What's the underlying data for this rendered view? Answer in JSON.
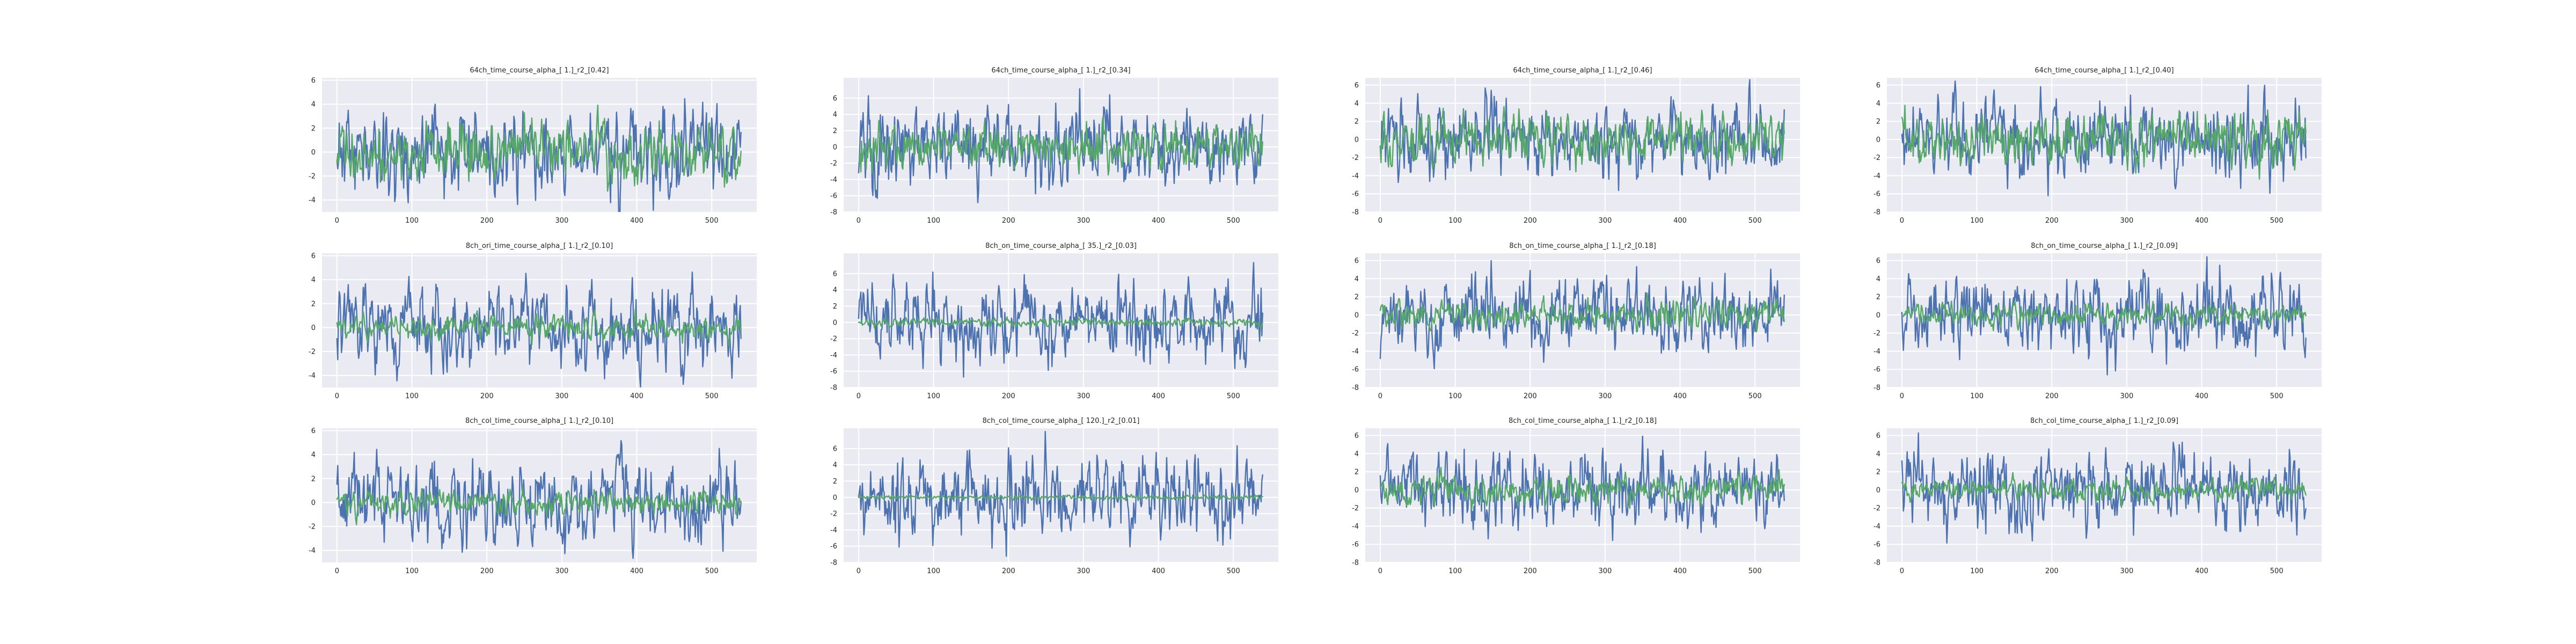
{
  "chart_data": [
    {
      "type": "line",
      "title": "64ch_time_course_alpha_[ 1.]_r2_[0.42]",
      "xlim": [
        -20,
        560
      ],
      "ylim": [
        -5,
        6.2
      ],
      "xticks": [
        0,
        100,
        200,
        300,
        400,
        500
      ],
      "yticks": [
        -4,
        -2,
        0,
        2,
        4,
        6
      ],
      "series": [
        {
          "color": "#4C72B0",
          "seed": 11,
          "amp": 1.8,
          "length": 540
        },
        {
          "color": "#55A868",
          "seed": 12,
          "amp": 1.2,
          "length": 540
        }
      ]
    },
    {
      "type": "line",
      "title": "64ch_time_course_alpha_[ 1.]_r2_[0.34]",
      "xlim": [
        -20,
        560
      ],
      "ylim": [
        -8,
        8.5
      ],
      "xticks": [
        0,
        100,
        200,
        300,
        400,
        500
      ],
      "yticks": [
        -8,
        -6,
        -4,
        -2,
        0,
        2,
        4,
        6
      ],
      "series": [
        {
          "color": "#4C72B0",
          "seed": 21,
          "amp": 2.4,
          "length": 540
        },
        {
          "color": "#55A868",
          "seed": 22,
          "amp": 1.3,
          "length": 540
        }
      ]
    },
    {
      "type": "line",
      "title": "64ch_time_course_alpha_[ 1.]_r2_[0.46]",
      "xlim": [
        -20,
        560
      ],
      "ylim": [
        -8,
        6.8
      ],
      "xticks": [
        0,
        100,
        200,
        300,
        400,
        500
      ],
      "yticks": [
        -8,
        -6,
        -4,
        -2,
        0,
        2,
        4,
        6
      ],
      "series": [
        {
          "color": "#4C72B0",
          "seed": 31,
          "amp": 2.0,
          "length": 540
        },
        {
          "color": "#55A868",
          "seed": 32,
          "amp": 1.4,
          "length": 540
        }
      ]
    },
    {
      "type": "line",
      "title": "64ch_time_course_alpha_[ 1.]_r2_[0.40]",
      "xlim": [
        -20,
        560
      ],
      "ylim": [
        -8,
        6.8
      ],
      "xticks": [
        0,
        100,
        200,
        300,
        400,
        500
      ],
      "yticks": [
        -8,
        -6,
        -4,
        -2,
        0,
        2,
        4,
        6
      ],
      "series": [
        {
          "color": "#4C72B0",
          "seed": 41,
          "amp": 2.1,
          "length": 540
        },
        {
          "color": "#55A868",
          "seed": 42,
          "amp": 1.4,
          "length": 540
        }
      ]
    },
    {
      "type": "line",
      "title": "8ch_ori_time_course_alpha_[ 1.]_r2_[0.10]",
      "xlim": [
        -20,
        560
      ],
      "ylim": [
        -5,
        6.2
      ],
      "xticks": [
        0,
        100,
        200,
        300,
        400,
        500
      ],
      "yticks": [
        -4,
        -2,
        0,
        2,
        4,
        6
      ],
      "series": [
        {
          "color": "#4C72B0",
          "seed": 51,
          "amp": 1.8,
          "length": 540
        },
        {
          "color": "#55A868",
          "seed": 52,
          "amp": 0.5,
          "length": 540
        }
      ]
    },
    {
      "type": "line",
      "title": "8ch_on_time_course_alpha_[ 35.]_r2_[0.03]",
      "xlim": [
        -20,
        560
      ],
      "ylim": [
        -8,
        8.5
      ],
      "xticks": [
        0,
        100,
        200,
        300,
        400,
        500
      ],
      "yticks": [
        -8,
        -6,
        -4,
        -2,
        0,
        2,
        4,
        6
      ],
      "series": [
        {
          "color": "#4C72B0",
          "seed": 61,
          "amp": 2.4,
          "length": 540
        },
        {
          "color": "#55A868",
          "seed": 62,
          "amp": 0.25,
          "length": 540
        }
      ]
    },
    {
      "type": "line",
      "title": "8ch_on_time_course_alpha_[ 1.]_r2_[0.18]",
      "xlim": [
        -20,
        560
      ],
      "ylim": [
        -8,
        6.8
      ],
      "xticks": [
        0,
        100,
        200,
        300,
        400,
        500
      ],
      "yticks": [
        -8,
        -6,
        -4,
        -2,
        0,
        2,
        4,
        6
      ],
      "series": [
        {
          "color": "#4C72B0",
          "seed": 71,
          "amp": 2.0,
          "length": 540
        },
        {
          "color": "#55A868",
          "seed": 72,
          "amp": 0.8,
          "length": 540
        }
      ]
    },
    {
      "type": "line",
      "title": "8ch_on_time_course_alpha_[ 1.]_r2_[0.09]",
      "xlim": [
        -20,
        560
      ],
      "ylim": [
        -8,
        6.8
      ],
      "xticks": [
        0,
        100,
        200,
        300,
        400,
        500
      ],
      "yticks": [
        -8,
        -6,
        -4,
        -2,
        0,
        2,
        4,
        6
      ],
      "series": [
        {
          "color": "#4C72B0",
          "seed": 81,
          "amp": 2.1,
          "length": 540
        },
        {
          "color": "#55A868",
          "seed": 82,
          "amp": 0.6,
          "length": 540
        }
      ]
    },
    {
      "type": "line",
      "title": "8ch_col_time_course_alpha_[ 1.]_r2_[0.10]",
      "xlim": [
        -20,
        560
      ],
      "ylim": [
        -5,
        6.2
      ],
      "xticks": [
        0,
        100,
        200,
        300,
        400,
        500
      ],
      "yticks": [
        -4,
        -2,
        0,
        2,
        4,
        6
      ],
      "series": [
        {
          "color": "#4C72B0",
          "seed": 91,
          "amp": 1.8,
          "length": 540
        },
        {
          "color": "#55A868",
          "seed": 92,
          "amp": 0.5,
          "length": 540
        }
      ]
    },
    {
      "type": "line",
      "title": "8ch_col_time_course_alpha_[ 120.]_r2_[0.01]",
      "xlim": [
        -20,
        560
      ],
      "ylim": [
        -8,
        8.5
      ],
      "xticks": [
        0,
        100,
        200,
        300,
        400,
        500
      ],
      "yticks": [
        -8,
        -6,
        -4,
        -2,
        0,
        2,
        4,
        6
      ],
      "series": [
        {
          "color": "#4C72B0",
          "seed": 101,
          "amp": 2.4,
          "length": 540
        },
        {
          "color": "#55A868",
          "seed": 102,
          "amp": 0.12,
          "length": 540
        }
      ]
    },
    {
      "type": "line",
      "title": "8ch_col_time_course_alpha_[ 1.]_r2_[0.18]",
      "xlim": [
        -20,
        560
      ],
      "ylim": [
        -8,
        6.8
      ],
      "xticks": [
        0,
        100,
        200,
        300,
        400,
        500
      ],
      "yticks": [
        -8,
        -6,
        -4,
        -2,
        0,
        2,
        4,
        6
      ],
      "series": [
        {
          "color": "#4C72B0",
          "seed": 111,
          "amp": 2.0,
          "length": 540
        },
        {
          "color": "#55A868",
          "seed": 112,
          "amp": 0.8,
          "length": 540
        }
      ]
    },
    {
      "type": "line",
      "title": "8ch_col_time_course_alpha_[ 1.]_r2_[0.09]",
      "xlim": [
        -20,
        560
      ],
      "ylim": [
        -8,
        6.8
      ],
      "xticks": [
        0,
        100,
        200,
        300,
        400,
        500
      ],
      "yticks": [
        -8,
        -6,
        -4,
        -2,
        0,
        2,
        4,
        6
      ],
      "series": [
        {
          "color": "#4C72B0",
          "seed": 121,
          "amp": 2.1,
          "length": 540
        },
        {
          "color": "#55A868",
          "seed": 122,
          "amp": 0.6,
          "length": 540
        }
      ]
    }
  ]
}
